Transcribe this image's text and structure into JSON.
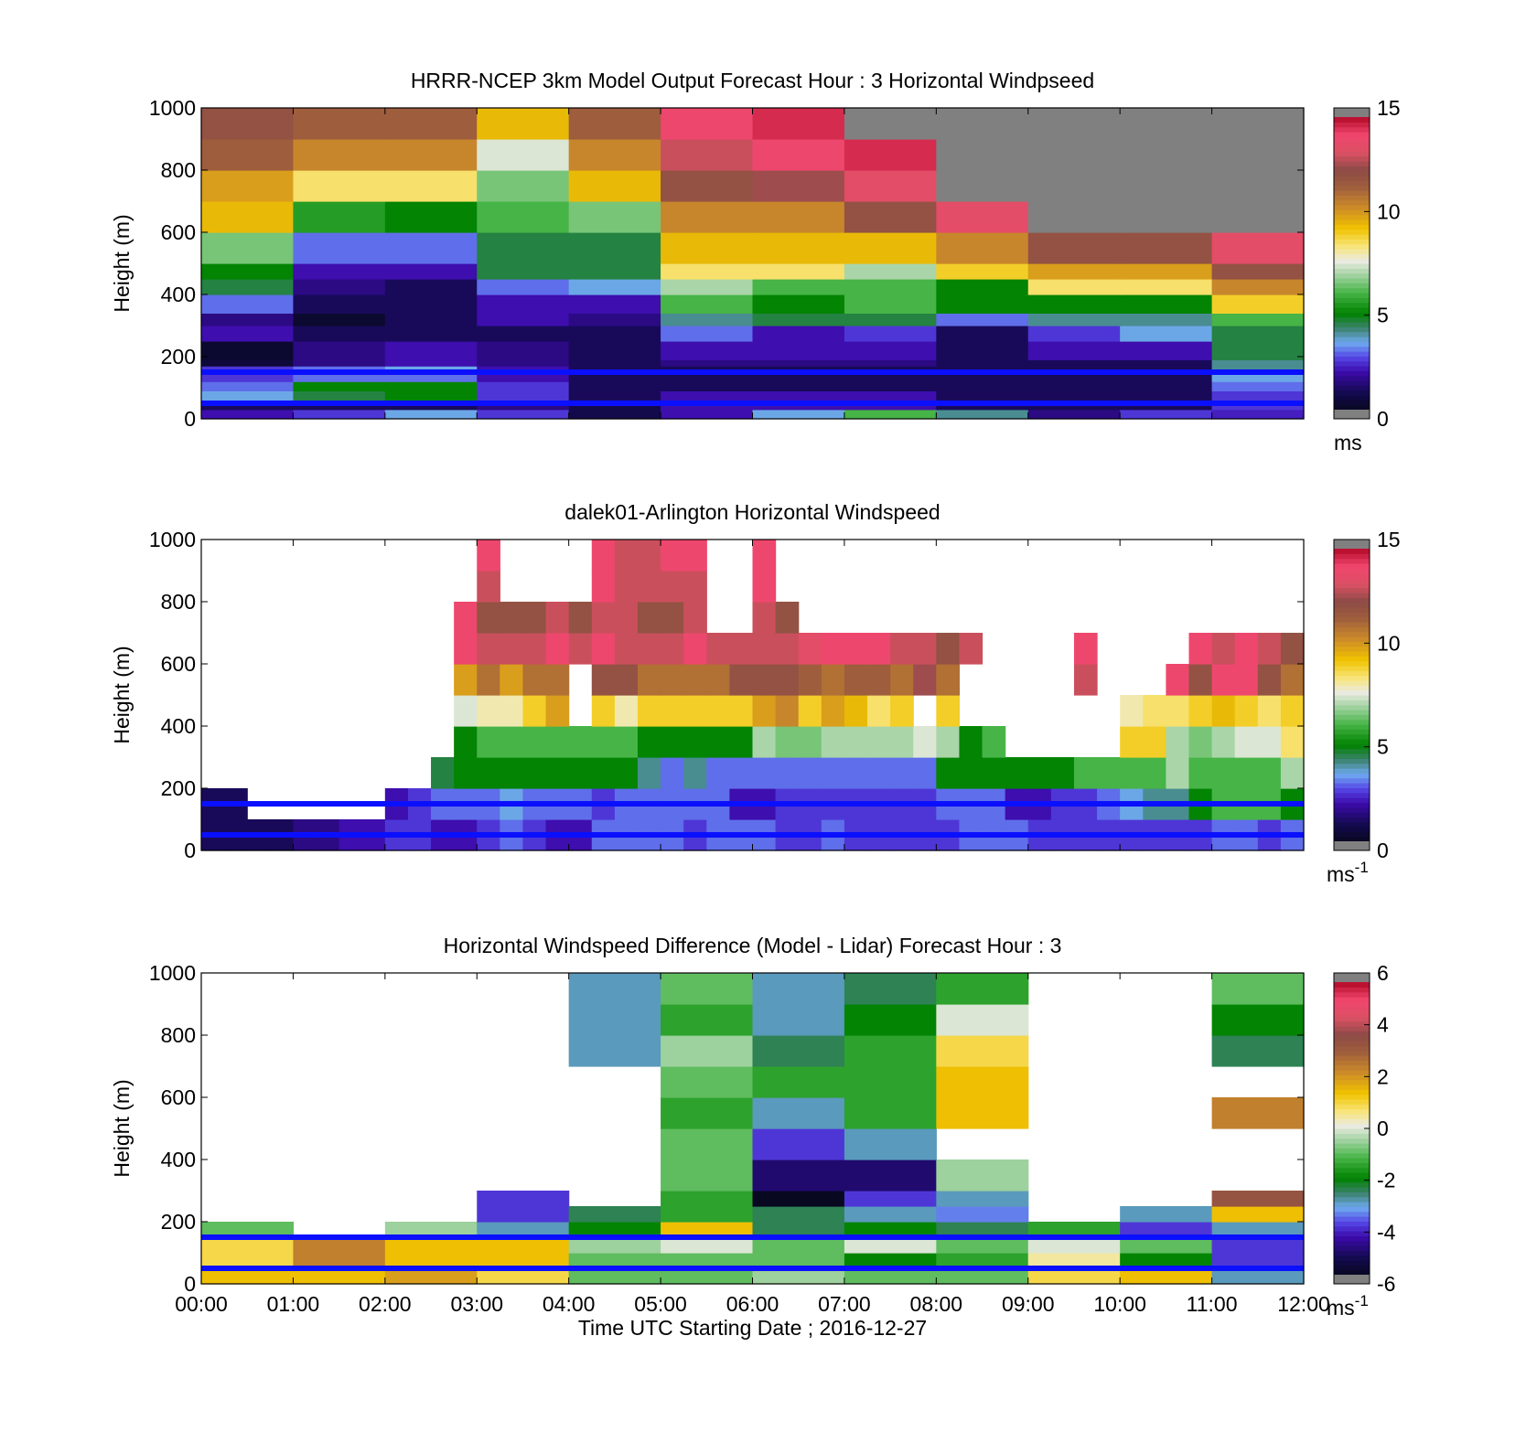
{
  "figure": {
    "xlabel": "Time UTC  Starting Date ; 2016-12-27",
    "x_tick_labels": [
      "00:00",
      "01:00",
      "02:00",
      "03:00",
      "04:00",
      "05:00",
      "06:00",
      "07:00",
      "08:00",
      "09:00",
      "10:00",
      "11:00",
      "12:00"
    ],
    "y_tick_labels": [
      "0",
      "200",
      "400",
      "600",
      "800",
      "1000"
    ],
    "ylabel": "Height (m)",
    "reference_lines_m": [
      50,
      150
    ],
    "reference_line_color": "#0a10ff",
    "missing_color": "#808080"
  },
  "chart_data": [
    {
      "type": "heatmap",
      "title": "HRRR-NCEP 3km Model Output   Forecast Hour : 3 Horizontal Windpseed",
      "ylabel": "Height (m)",
      "xlim": [
        0,
        12
      ],
      "ylim": [
        0,
        1000
      ],
      "colorbar": {
        "range": [
          0,
          15
        ],
        "ticks": [
          "0",
          "5",
          "10",
          "15"
        ],
        "unit": "ms"
      },
      "x_bin_hours": 1,
      "levels_m": [
        0,
        30,
        50,
        90,
        120,
        150,
        170,
        190,
        250,
        300,
        340,
        400,
        450,
        500,
        600,
        700,
        800,
        900,
        1000
      ],
      "values": [
        [
          2,
          2.5,
          3.5,
          2.5,
          0.8,
          2,
          3.5,
          6,
          4,
          1.5,
          2.5,
          2.2
        ],
        [
          1,
          1,
          1,
          1.5,
          0.8,
          2,
          2,
          2,
          1,
          1,
          1,
          2.5
        ],
        [
          3.5,
          4.5,
          5,
          2.5,
          1,
          2,
          2,
          2,
          1,
          1,
          1,
          2.5
        ],
        [
          3,
          5,
          5,
          2.5,
          1,
          1,
          1,
          1,
          1,
          1,
          1,
          3
        ],
        [
          2.5,
          3,
          3,
          2,
          1,
          1,
          1,
          1,
          1,
          1,
          1,
          3.5
        ],
        [
          2.5,
          3,
          3.5,
          2,
          1,
          1,
          1,
          1,
          1,
          1,
          1,
          4
        ],
        [
          0.5,
          1.5,
          2,
          1.5,
          1,
          1.5,
          1.5,
          1.5,
          1,
          1,
          1,
          4
        ],
        [
          0.3,
          1.5,
          2,
          1.5,
          1,
          2,
          2,
          2,
          1,
          2,
          2,
          4.5
        ],
        [
          2,
          1,
          1,
          1,
          1,
          3,
          2,
          2.5,
          1,
          2.5,
          3.5,
          4.5
        ],
        [
          1.5,
          0.3,
          1,
          2,
          1.5,
          4,
          4.5,
          4.5,
          3,
          4,
          4,
          6
        ],
        [
          3,
          1,
          1,
          2,
          2,
          6,
          5,
          6,
          5,
          5,
          5,
          9
        ],
        [
          4.5,
          1.5,
          1,
          3,
          3.5,
          7,
          6,
          6,
          5,
          8.5,
          8.5,
          10.5
        ],
        [
          5,
          2,
          2,
          4.5,
          4.5,
          8.5,
          8.5,
          7,
          9,
          10,
          10,
          12
        ],
        [
          6.5,
          3,
          3,
          4.5,
          4.5,
          9.5,
          9.5,
          9.5,
          10.5,
          12,
          12,
          13.5
        ],
        [
          9.5,
          5.5,
          5,
          6,
          6.5,
          10.5,
          10.5,
          12,
          13.5,
          null,
          null,
          null
        ],
        [
          10,
          8.5,
          8.5,
          6.5,
          9.5,
          12,
          12.5,
          13.5,
          null,
          null,
          null,
          null
        ],
        [
          11.5,
          10.5,
          10.5,
          7.5,
          10.5,
          13,
          14,
          14.5,
          null,
          null,
          null,
          null
        ],
        [
          12,
          11.5,
          11.5,
          9.5,
          11.5,
          14,
          14.5,
          null,
          null,
          null,
          null,
          null
        ]
      ]
    },
    {
      "type": "heatmap",
      "title": "dalek01-Arlington  Horizontal Windspeed",
      "ylabel": "Height (m)",
      "xlim": [
        0,
        12
      ],
      "ylim": [
        0,
        1000
      ],
      "colorbar": {
        "range": [
          0,
          15
        ],
        "ticks": [
          "0",
          "5",
          "10",
          "15"
        ],
        "unit": "ms",
        "unit_exponent": "-1"
      },
      "x_bin_hours": 0.25,
      "levels_m": [
        0,
        100,
        200,
        300,
        400,
        500,
        600,
        700,
        800,
        900,
        1000
      ],
      "values": [
        [
          1,
          1,
          1,
          1,
          1.5,
          1.5,
          2,
          2,
          2.5,
          2.5,
          2,
          2,
          2.5,
          3,
          2.5,
          2,
          2,
          3,
          3,
          3,
          3,
          2.5,
          3,
          3,
          3,
          2.5,
          2.5,
          3,
          2.5,
          2.5,
          2.5,
          2.5,
          2.5,
          3,
          3,
          3,
          2.5,
          2.5,
          2.5,
          2.5,
          2.5,
          2.5,
          2.5,
          2.5,
          3,
          3,
          2.5,
          3
        ],
        [
          1,
          1,
          null,
          null,
          null,
          null,
          null,
          null,
          2,
          2.5,
          3,
          3,
          3,
          3.5,
          3,
          3,
          3,
          2.5,
          3,
          3,
          3,
          3,
          3,
          2,
          2,
          2.5,
          2.5,
          2.5,
          2.5,
          2.5,
          2.5,
          2.5,
          3,
          3,
          3,
          2,
          2,
          2.5,
          2.5,
          3,
          3.5,
          4,
          4,
          5,
          6,
          6,
          6,
          5
        ],
        [
          null,
          null,
          null,
          null,
          null,
          null,
          null,
          null,
          null,
          null,
          4.5,
          5,
          5,
          5,
          5,
          5,
          5,
          5,
          5,
          4,
          3,
          4,
          3,
          3,
          3,
          3,
          3,
          3,
          3,
          3,
          3,
          3,
          5,
          5,
          5,
          5,
          5,
          5,
          6,
          6,
          6,
          6,
          7,
          6,
          6,
          6,
          6,
          7
        ],
        [
          null,
          null,
          null,
          null,
          null,
          null,
          null,
          null,
          null,
          null,
          null,
          5,
          6,
          6,
          6,
          6,
          6,
          6,
          6,
          5,
          5,
          5,
          5,
          5,
          7,
          6.5,
          6.5,
          7,
          7,
          7,
          7,
          7.5,
          7,
          5,
          6,
          null,
          null,
          null,
          null,
          null,
          9,
          9,
          7,
          6.5,
          7,
          7.5,
          7.5,
          8.5
        ],
        [
          null,
          null,
          null,
          null,
          null,
          null,
          null,
          null,
          null,
          null,
          null,
          7.5,
          8,
          8,
          9,
          10,
          null,
          9,
          8,
          9,
          9,
          9,
          9,
          9,
          10,
          10.5,
          9,
          10,
          9.5,
          8.5,
          9,
          null,
          9,
          null,
          null,
          null,
          null,
          null,
          null,
          null,
          8,
          8.5,
          8.5,
          9,
          9.5,
          9,
          8.5,
          9
        ],
        [
          null,
          null,
          null,
          null,
          null,
          null,
          null,
          null,
          null,
          null,
          null,
          10,
          11,
          10,
          11,
          11,
          null,
          12,
          12,
          11,
          11,
          11,
          11,
          12,
          12,
          12,
          11.5,
          11,
          11.5,
          11.5,
          11,
          12.5,
          11,
          null,
          null,
          null,
          null,
          null,
          13,
          null,
          null,
          null,
          14,
          12,
          14,
          14,
          12,
          11
        ],
        [
          null,
          null,
          null,
          null,
          null,
          null,
          null,
          null,
          null,
          null,
          null,
          14,
          13,
          13,
          13,
          14,
          13,
          14,
          13,
          13,
          13,
          14,
          13,
          13,
          13,
          13,
          13.5,
          14,
          14,
          14,
          13,
          13,
          12,
          13,
          null,
          null,
          null,
          null,
          14,
          null,
          null,
          null,
          null,
          14,
          13,
          14,
          13,
          12
        ],
        [
          null,
          null,
          null,
          null,
          null,
          null,
          null,
          null,
          null,
          null,
          null,
          14,
          12,
          12,
          12,
          13,
          12,
          13,
          13,
          12,
          12,
          13,
          null,
          null,
          13,
          12,
          null,
          null,
          null,
          null,
          null,
          null,
          null,
          null,
          null,
          null,
          null,
          null,
          null,
          null,
          null,
          null,
          null,
          null,
          null,
          null,
          null,
          null
        ],
        [
          null,
          null,
          null,
          null,
          null,
          null,
          null,
          null,
          null,
          null,
          null,
          null,
          13,
          null,
          null,
          null,
          null,
          14,
          13,
          13,
          13,
          13,
          null,
          null,
          14,
          null,
          null,
          null,
          null,
          null,
          null,
          null,
          null,
          null,
          null,
          null,
          null,
          null,
          null,
          null,
          null,
          null,
          null,
          null,
          null,
          null,
          null,
          null
        ],
        [
          null,
          null,
          null,
          null,
          null,
          null,
          null,
          null,
          null,
          null,
          null,
          null,
          14,
          null,
          null,
          null,
          null,
          14,
          13,
          13,
          14,
          14,
          null,
          null,
          14,
          null,
          null,
          null,
          null,
          null,
          null,
          null,
          null,
          null,
          null,
          null,
          null,
          null,
          null,
          null,
          null,
          null,
          null,
          null,
          null,
          null,
          null,
          null
        ]
      ]
    },
    {
      "type": "heatmap",
      "title": "Horizontal Windspeed Difference (Model - Lidar) Forecast Hour : 3",
      "ylabel": "Height (m)",
      "xlabel": "Time UTC  Starting Date ; 2016-12-27",
      "xlim": [
        0,
        12
      ],
      "ylim": [
        0,
        1000
      ],
      "colorbar": {
        "range": [
          -6,
          6
        ],
        "ticks": [
          "-6",
          "-4",
          "-2",
          "0",
          "2",
          "4",
          "6"
        ],
        "unit": "ms",
        "unit_exponent": "-1"
      },
      "x_bin_hours": 1,
      "levels_m": [
        0,
        50,
        100,
        150,
        200,
        250,
        300,
        400,
        500,
        600,
        700,
        800,
        900,
        1000
      ],
      "values": [
        [
          1.5,
          1.5,
          2,
          1,
          -1,
          -1,
          -0.5,
          -1,
          -1,
          1,
          1.5,
          -3
        ],
        [
          1,
          2.5,
          1.5,
          1.5,
          -1,
          -1,
          -1,
          -2,
          -1.5,
          0.5,
          -2,
          -4
        ],
        [
          1,
          2.5,
          1.5,
          1.5,
          -0.5,
          0,
          -1,
          0,
          -1,
          0,
          -1,
          -4
        ],
        [
          -1,
          null,
          -0.5,
          -3,
          -2,
          1.5,
          -2.5,
          -2,
          -2.5,
          -1.5,
          -4,
          -3
        ],
        [
          null,
          null,
          null,
          -4,
          -2.5,
          -1.5,
          -2.5,
          -3,
          -3.5,
          null,
          -3,
          1.5
        ],
        [
          null,
          null,
          null,
          -4,
          null,
          -1.5,
          -6,
          -4,
          -3,
          null,
          null,
          3.5
        ],
        [
          null,
          null,
          null,
          null,
          null,
          -1,
          -5,
          -5,
          -0.5,
          null,
          null,
          null
        ],
        [
          null,
          null,
          null,
          null,
          null,
          -1,
          -4,
          -3,
          null,
          null,
          null,
          null
        ],
        [
          null,
          null,
          null,
          null,
          null,
          -1.5,
          -3,
          -1.5,
          1.5,
          null,
          null,
          2.5
        ],
        [
          null,
          null,
          null,
          null,
          null,
          -1,
          -1.5,
          -1.5,
          1.5,
          null,
          null,
          null
        ],
        [
          null,
          null,
          null,
          null,
          -3,
          -0.5,
          -2.5,
          -1.5,
          1,
          null,
          null,
          -2.5
        ],
        [
          null,
          null,
          null,
          null,
          -3,
          -1.5,
          -3,
          -2,
          0,
          null,
          null,
          -2
        ],
        [
          null,
          null,
          null,
          null,
          -3,
          -1,
          -3,
          -2.5,
          -1.5,
          null,
          null,
          -1
        ]
      ]
    }
  ]
}
